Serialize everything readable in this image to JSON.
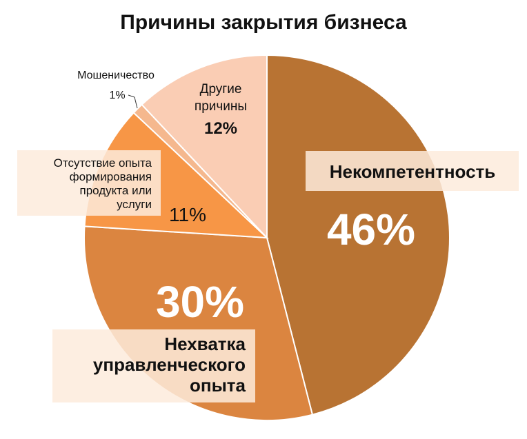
{
  "chart_data": {
    "type": "pie",
    "title": "Причины закрытия бизнеса",
    "slices": [
      {
        "label": "Некомпетентность",
        "value": 46,
        "value_label": "46%",
        "color": "#B87333"
      },
      {
        "label": "Нехватка управленческого опыта",
        "value": 30,
        "value_label": "30%",
        "color": "#DB8540"
      },
      {
        "label": "Отсутствие опыта формирования продукта или услуги",
        "value": 11,
        "value_label": "11%",
        "color": "#F79646"
      },
      {
        "label": "Мошеничество",
        "value": 1,
        "value_label": "1%",
        "color": "#F5B88E"
      },
      {
        "label": "Другие причины",
        "value": 12,
        "value_label": "12%",
        "color": "#FACDB4"
      }
    ]
  },
  "labels": {
    "incompetence": {
      "name": "Некомпетентность",
      "value": "46%"
    },
    "management": {
      "name_lines": [
        "Нехватка",
        "управленческого",
        "опыта"
      ],
      "value": "30%"
    },
    "product": {
      "name_lines": [
        "Отсутствие опыта",
        "формирования",
        "продукта или",
        "услуги"
      ],
      "value": "11%"
    },
    "fraud": {
      "name": "Мошеничество",
      "value": "1%"
    },
    "other": {
      "name_lines": [
        "Другие",
        "причины"
      ],
      "value": "12%"
    }
  }
}
